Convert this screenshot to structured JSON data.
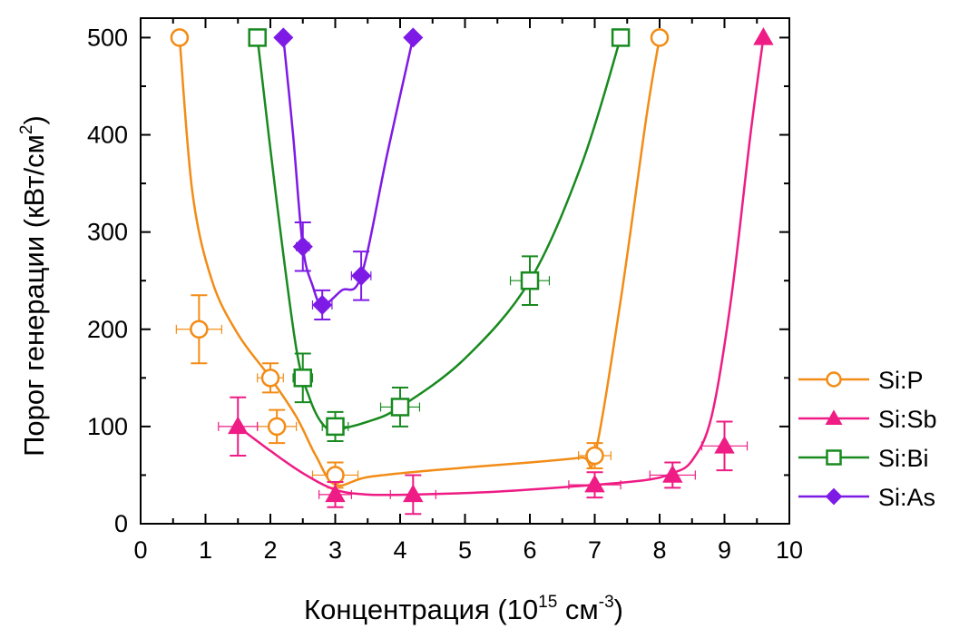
{
  "chart_data": {
    "type": "scatter",
    "xlabel": {
      "main": "Концентрация (10",
      "sup": "15",
      "mid": " см",
      "sup2": "-3",
      "end": ")"
    },
    "ylabel": {
      "main": "Порог генерации (кВт/см",
      "sup": "2",
      "end": ")"
    },
    "xlim": [
      0,
      10
    ],
    "ylim": [
      0,
      520
    ],
    "xticks": [
      0,
      1,
      2,
      3,
      4,
      5,
      6,
      7,
      8,
      9,
      10
    ],
    "yticks": [
      0,
      100,
      200,
      300,
      400,
      500
    ],
    "grid": false,
    "legend_position": "right",
    "series": [
      {
        "name": "Si:P",
        "marker": "circle-open",
        "color": "#F28C16",
        "points": [
          {
            "x": 0.6,
            "y": 500
          },
          {
            "x": 0.9,
            "y": 200,
            "xerr": 0.35,
            "yerr": 35
          },
          {
            "x": 2.0,
            "y": 150,
            "xerr": 0.2,
            "yerr": 15
          },
          {
            "x": 2.1,
            "y": 100,
            "xerr": 0.3,
            "yerr": 17
          },
          {
            "x": 3.0,
            "y": 50,
            "xerr": 0.35,
            "yerr": 13
          },
          {
            "x": 7.0,
            "y": 70,
            "xerr": 0.25,
            "yerr": 13
          },
          {
            "x": 8.0,
            "y": 500
          }
        ],
        "curve": [
          [
            0.6,
            500
          ],
          [
            0.8,
            340
          ],
          [
            1.1,
            250
          ],
          [
            1.5,
            195
          ],
          [
            2.0,
            150
          ],
          [
            2.4,
            110
          ],
          [
            2.7,
            70
          ],
          [
            3.0,
            40
          ],
          [
            3.5,
            48
          ],
          [
            4.5,
            55
          ],
          [
            6.0,
            63
          ],
          [
            6.8,
            68
          ],
          [
            7.0,
            70
          ],
          [
            7.4,
            230
          ],
          [
            7.8,
            420
          ],
          [
            8.0,
            500
          ]
        ]
      },
      {
        "name": "Si:Sb",
        "marker": "triangle-filled",
        "color": "#EE1C84",
        "points": [
          {
            "x": 1.5,
            "y": 100,
            "xerr": 0.3,
            "yerr": 30
          },
          {
            "x": 3.0,
            "y": 30,
            "xerr": 0.25,
            "yerr": 13
          },
          {
            "x": 4.2,
            "y": 30,
            "xerr": 0.35,
            "yerr": 20
          },
          {
            "x": 7.0,
            "y": 40,
            "xerr": 0.4,
            "yerr": 13
          },
          {
            "x": 8.2,
            "y": 50,
            "xerr": 0.35,
            "yerr": 13
          },
          {
            "x": 9.0,
            "y": 80,
            "xerr": 0.35,
            "yerr": 25
          },
          {
            "x": 9.6,
            "y": 500
          }
        ],
        "curve": [
          [
            1.5,
            100
          ],
          [
            2.0,
            75
          ],
          [
            2.5,
            52
          ],
          [
            3.0,
            35
          ],
          [
            3.5,
            30
          ],
          [
            4.2,
            30
          ],
          [
            5.5,
            33
          ],
          [
            7.0,
            40
          ],
          [
            7.8,
            45
          ],
          [
            8.2,
            52
          ],
          [
            8.5,
            65
          ],
          [
            8.8,
            110
          ],
          [
            9.1,
            230
          ],
          [
            9.4,
            400
          ],
          [
            9.6,
            500
          ]
        ]
      },
      {
        "name": "Si:Bi",
        "marker": "square-open",
        "color": "#188A1F",
        "points": [
          {
            "x": 1.8,
            "y": 500
          },
          {
            "x": 2.5,
            "y": 150,
            "xerr": 0.15,
            "yerr": 25
          },
          {
            "x": 3.0,
            "y": 100,
            "xerr": 0.2,
            "yerr": 15
          },
          {
            "x": 4.0,
            "y": 120,
            "xerr": 0.3,
            "yerr": 20
          },
          {
            "x": 6.0,
            "y": 250,
            "xerr": 0.3,
            "yerr": 25
          },
          {
            "x": 7.4,
            "y": 500
          }
        ],
        "curve": [
          [
            1.8,
            500
          ],
          [
            2.1,
            330
          ],
          [
            2.4,
            180
          ],
          [
            2.6,
            130
          ],
          [
            2.8,
            103
          ],
          [
            3.0,
            97
          ],
          [
            3.5,
            105
          ],
          [
            4.0,
            120
          ],
          [
            5.0,
            170
          ],
          [
            6.0,
            250
          ],
          [
            6.8,
            370
          ],
          [
            7.4,
            500
          ]
        ]
      },
      {
        "name": "Si:As",
        "marker": "diamond-filled",
        "color": "#7E1AE6",
        "points": [
          {
            "x": 2.2,
            "y": 500
          },
          {
            "x": 2.5,
            "y": 285,
            "xerr": 0.1,
            "yerr": 25
          },
          {
            "x": 2.8,
            "y": 225,
            "xerr": 0.15,
            "yerr": 15
          },
          {
            "x": 3.4,
            "y": 255,
            "xerr": 0.15,
            "yerr": 25
          },
          {
            "x": 4.2,
            "y": 500
          }
        ],
        "curve": [
          [
            2.2,
            500
          ],
          [
            2.35,
            400
          ],
          [
            2.5,
            285
          ],
          [
            2.65,
            245
          ],
          [
            2.8,
            225
          ],
          [
            3.1,
            240
          ],
          [
            3.4,
            255
          ],
          [
            3.8,
            380
          ],
          [
            4.2,
            500
          ]
        ]
      }
    ]
  }
}
